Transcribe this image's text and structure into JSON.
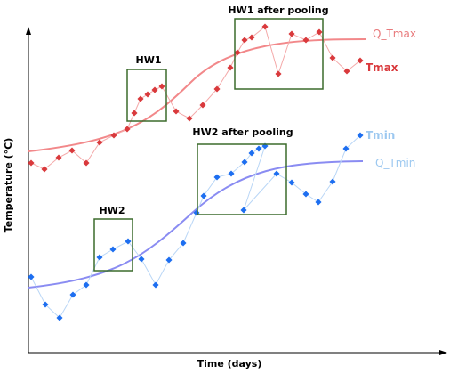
{
  "labels": {
    "xlabel": "Time (days)",
    "ylabel": "Temperature (°C)",
    "hw1": "HW1",
    "hw1_after": "HW1 after pooling",
    "hw2": "HW2",
    "hw2_after": "HW2 after pooling",
    "q_tmax": "Q_Tmax",
    "tmax": "Tmax",
    "tmin": "Tmin",
    "q_tmin": "Q_Tmin"
  },
  "colors": {
    "tmax": "#d9393c",
    "tmax_light": "#f4a9a9",
    "q_tmax": "#f2888a",
    "tmin": "#1d6ef0",
    "tmin_light": "#b9d6f6",
    "q_tmin": "#8a8cf2",
    "box": "#3b6b2c",
    "tmin_label": "#9cc8f0",
    "axis": "#000000"
  },
  "series": {
    "tmax_marker_count": 25,
    "tmin_marker_count": 25
  }
}
